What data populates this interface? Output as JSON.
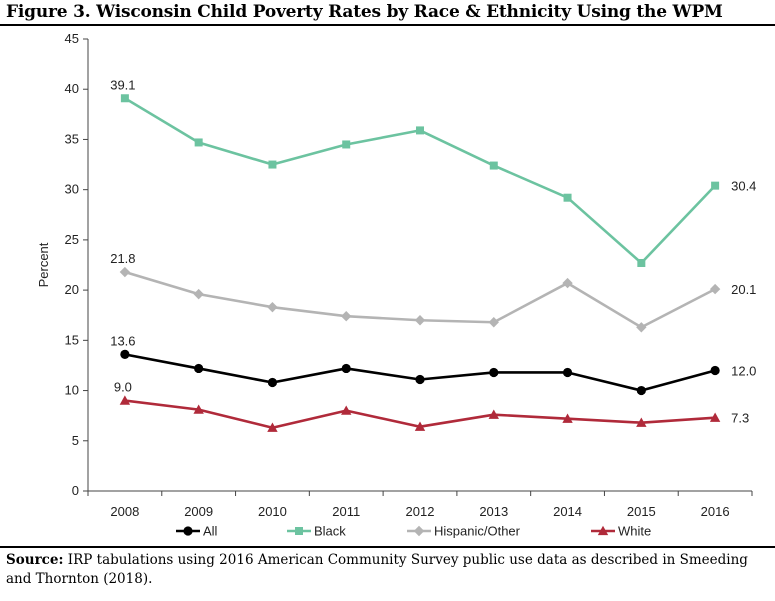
{
  "title": "Figure 3. Wisconsin Child Poverty Rates by Race & Ethnicity Using the WPM",
  "source": {
    "label": "Source:",
    "text": " IRP tabulations using 2016 American Community Survey public use data as described in Smeeding and Thornton (2018)."
  },
  "chart_data": {
    "type": "line",
    "title": "Figure 3. Wisconsin Child Poverty Rates by Race & Ethnicity Using the WPM",
    "xlabel": "",
    "ylabel": "Percent",
    "categories": [
      "2008",
      "2009",
      "2010",
      "2011",
      "2012",
      "2013",
      "2014",
      "2015",
      "2016"
    ],
    "ylim": [
      0,
      45
    ],
    "yticks": [
      0,
      5,
      10,
      15,
      20,
      25,
      30,
      35,
      40,
      45
    ],
    "grid": false,
    "legend_position": "bottom",
    "series": [
      {
        "name": "All",
        "color": "#000000",
        "marker": "circle",
        "values": [
          13.6,
          12.2,
          10.8,
          12.2,
          11.1,
          11.8,
          11.8,
          10.0,
          12.0
        ],
        "labels": [
          "13.6",
          "",
          "",
          "",
          "",
          "",
          "",
          "",
          "12.0"
        ]
      },
      {
        "name": "Black",
        "color": "#6cc3a0",
        "marker": "square",
        "values": [
          39.1,
          34.7,
          32.5,
          34.5,
          35.9,
          32.4,
          29.2,
          22.7,
          30.4
        ],
        "labels": [
          "39.1",
          "",
          "",
          "",
          "",
          "",
          "",
          "",
          "30.4"
        ]
      },
      {
        "name": "Hispanic/Other",
        "color": "#b4b4b4",
        "marker": "diamond",
        "values": [
          21.8,
          19.6,
          18.3,
          17.4,
          17.0,
          16.8,
          20.7,
          16.3,
          20.1
        ],
        "labels": [
          "21.8",
          "",
          "",
          "",
          "",
          "",
          "",
          "",
          "20.1"
        ]
      },
      {
        "name": "White",
        "color": "#b02a3a",
        "marker": "triangle",
        "values": [
          9.0,
          8.1,
          6.3,
          8.0,
          6.4,
          7.6,
          7.2,
          6.8,
          7.3
        ],
        "labels": [
          "9.0",
          "",
          "",
          "",
          "",
          "",
          "",
          "",
          "7.3"
        ]
      }
    ]
  }
}
